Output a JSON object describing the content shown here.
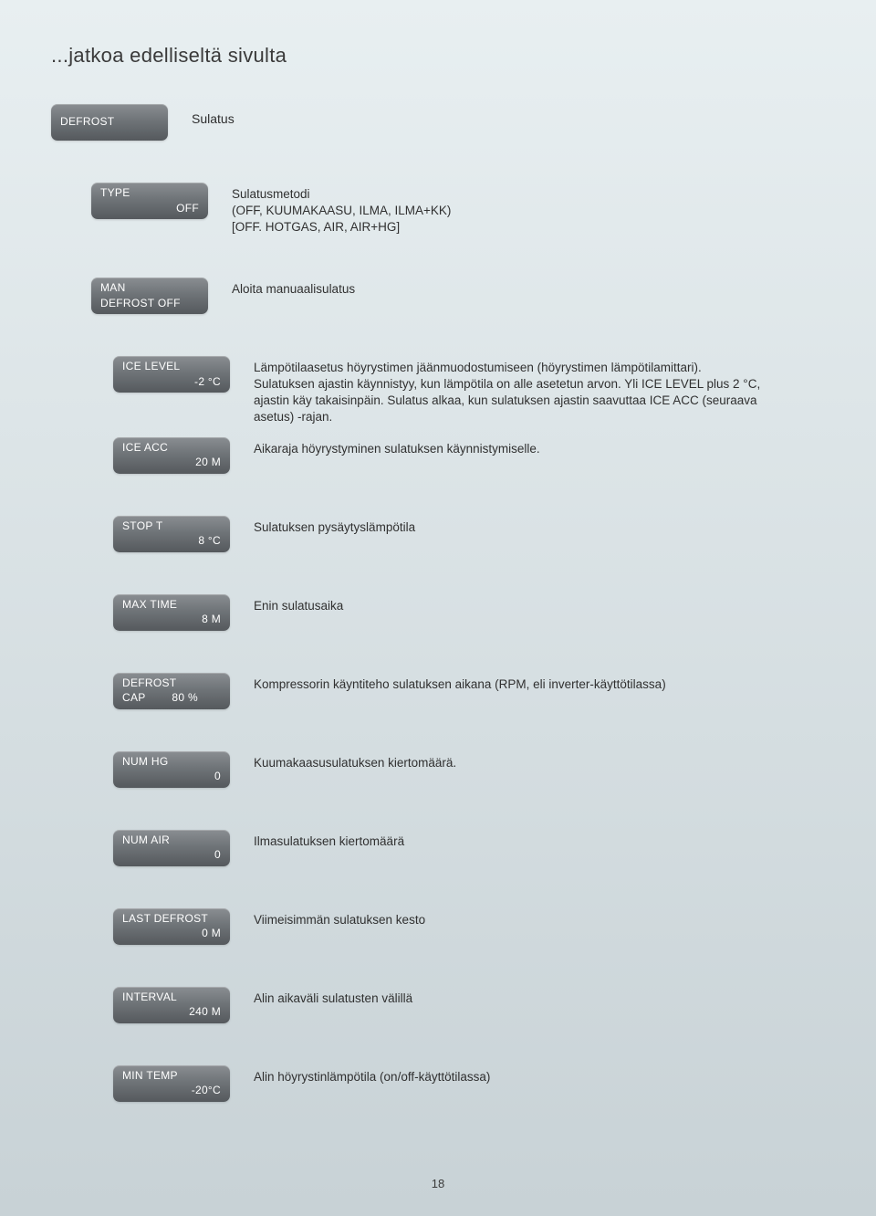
{
  "page_title": "...jatkoa edelliseltä sivulta",
  "page_number": "18",
  "colors": {
    "bg_top": "#e8eff1",
    "bg_bottom": "#c8d2d6",
    "btn_top": "#8a8e92",
    "btn_mid": "#6f7478",
    "btn_bottom": "#55595d",
    "btn_text": "#ffffff",
    "body_text": "#3a3a3a"
  },
  "rows": {
    "defrost": {
      "label1": "DEFROST",
      "label2": "",
      "side": "Sulatus"
    },
    "type": {
      "label1": "TYPE",
      "label2": "OFF",
      "desc": "Sulatusmetodi\n(OFF, KUUMAKAASU, ILMA, ILMA+KK)\n[OFF. HOTGAS, AIR, AIR+HG]"
    },
    "man": {
      "label1": "MAN",
      "label2": "DEFROST OFF",
      "desc": "Aloita manuaalisulatus"
    },
    "ice_level": {
      "label1": "ICE LEVEL",
      "label2": "-2 °C",
      "desc": "Lämpötilaasetus höyrystimen jäänmuodostumiseen (höyrystimen lämpötilamittari). Sulatuksen ajastin käynnistyy, kun lämpötila on alle asetetun arvon. Yli ICE LEVEL plus 2 °C, ajastin käy takaisinpäin. Sulatus alkaa, kun sulatuksen ajastin saavuttaa ICE ACC (seuraava asetus) -rajan."
    },
    "ice_acc": {
      "label1": "ICE ACC",
      "label2": "20 M",
      "desc": "Aikaraja höyrystyminen sulatuksen käynnistymiselle."
    },
    "stop_t": {
      "label1": "STOP T",
      "label2": "8 °C",
      "desc": "Sulatuksen pysäytyslämpötila"
    },
    "max_time": {
      "label1": "MAX TIME",
      "label2": "8 M",
      "desc": "Enin sulatusaika"
    },
    "defrost_cap": {
      "label1": "DEFROST",
      "label2": "CAP        80 %",
      "desc": "Kompressorin käyntiteho sulatuksen aikana (RPM, eli inverter-käyttötilassa)"
    },
    "num_hg": {
      "label1": "NUM HG",
      "label2": "0",
      "desc": "Kuumakaasusulatuksen kiertomäärä."
    },
    "num_air": {
      "label1": "NUM AIR",
      "label2": "0",
      "desc": "Ilmasulatuksen kiertomäärä"
    },
    "last_defrost": {
      "label1": "LAST DEFROST",
      "label2": "0 M",
      "desc": "Viimeisimmän sulatuksen kesto"
    },
    "interval": {
      "label1": "INTERVAL",
      "label2": "240 M",
      "desc": "Alin aikaväli sulatusten välillä"
    },
    "min_temp": {
      "label1": "MIN TEMP",
      "label2": "-20°C",
      "desc": "Alin höyrystinlämpötila (on/off-käyttötilassa)"
    }
  }
}
